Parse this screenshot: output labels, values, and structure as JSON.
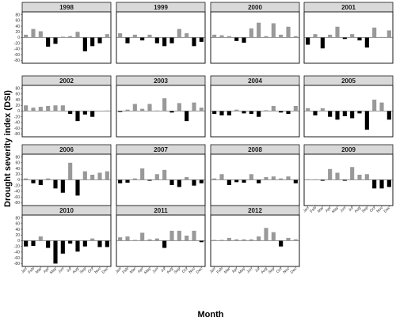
{
  "chart_data": {
    "type": "bar",
    "xlabel": "Month",
    "ylabel": "Drought severity index (DSI)",
    "ylim": [
      -90,
      90
    ],
    "y_ticks": [
      80,
      60,
      40,
      20,
      0,
      -20,
      -40,
      -60,
      -80
    ],
    "months": [
      "Jan",
      "Feb",
      "Mar",
      "Apr",
      "May",
      "Jun",
      "Jul",
      "Aug",
      "Sep",
      "Oct",
      "Nov",
      "Dec"
    ],
    "colors": {
      "positive": "#999999",
      "negative": "#000000",
      "strip": "#d9d9d9",
      "panel_border": "#1a1a1a"
    },
    "grid": false,
    "panels": [
      {
        "title": "1998",
        "values": [
          10,
          30,
          22,
          -32,
          -22,
          3,
          5,
          20,
          -48,
          -30,
          -20,
          12
        ]
      },
      {
        "title": "1999",
        "values": [
          15,
          -20,
          10,
          -10,
          10,
          -20,
          -30,
          -20,
          30,
          15,
          -30,
          -15
        ]
      },
      {
        "title": "2000",
        "values": [
          10,
          8,
          5,
          -12,
          -18,
          32,
          52,
          5,
          50,
          10,
          38,
          5
        ]
      },
      {
        "title": "2001",
        "values": [
          -25,
          12,
          -38,
          10,
          38,
          -5,
          12,
          -10,
          -35,
          35,
          2,
          25
        ]
      },
      {
        "title": "2002",
        "values": [
          20,
          12,
          15,
          18,
          20,
          20,
          -10,
          -35,
          -12,
          -20,
          0,
          2
        ]
      },
      {
        "title": "2003",
        "values": [
          -3,
          5,
          25,
          8,
          25,
          2,
          45,
          -5,
          28,
          -35,
          30,
          12
        ]
      },
      {
        "title": "2004",
        "values": [
          -10,
          -15,
          -15,
          5,
          -8,
          -10,
          -20,
          3,
          18,
          -5,
          -10,
          18
        ]
      },
      {
        "title": "2005",
        "values": [
          10,
          -15,
          10,
          -20,
          -30,
          -18,
          -25,
          -8,
          -65,
          40,
          30,
          -30
        ]
      },
      {
        "title": "2006",
        "values": [
          5,
          -12,
          -18,
          5,
          -30,
          -45,
          60,
          -55,
          30,
          18,
          25,
          30
        ]
      },
      {
        "title": "2007",
        "values": [
          -12,
          -10,
          5,
          40,
          -3,
          20,
          35,
          -18,
          -25,
          10,
          -20,
          -12
        ]
      },
      {
        "title": "2008",
        "values": [
          5,
          20,
          -18,
          -8,
          -10,
          20,
          -12,
          10,
          12,
          5,
          12,
          -12
        ]
      },
      {
        "title": "2009",
        "values": [
          2,
          2,
          -3,
          38,
          25,
          -3,
          45,
          18,
          20,
          -30,
          -30,
          -25
        ]
      },
      {
        "title": "2010",
        "values": [
          -20,
          -18,
          15,
          -25,
          -80,
          -45,
          -10,
          -38,
          -20,
          8,
          -22,
          -22
        ]
      },
      {
        "title": "2011",
        "values": [
          12,
          15,
          3,
          28,
          5,
          8,
          -25,
          35,
          35,
          18,
          35,
          -5
        ]
      },
      {
        "title": "2012",
        "values": [
          3,
          3,
          10,
          5,
          5,
          5,
          15,
          45,
          30,
          -20,
          10,
          5
        ]
      }
    ]
  }
}
